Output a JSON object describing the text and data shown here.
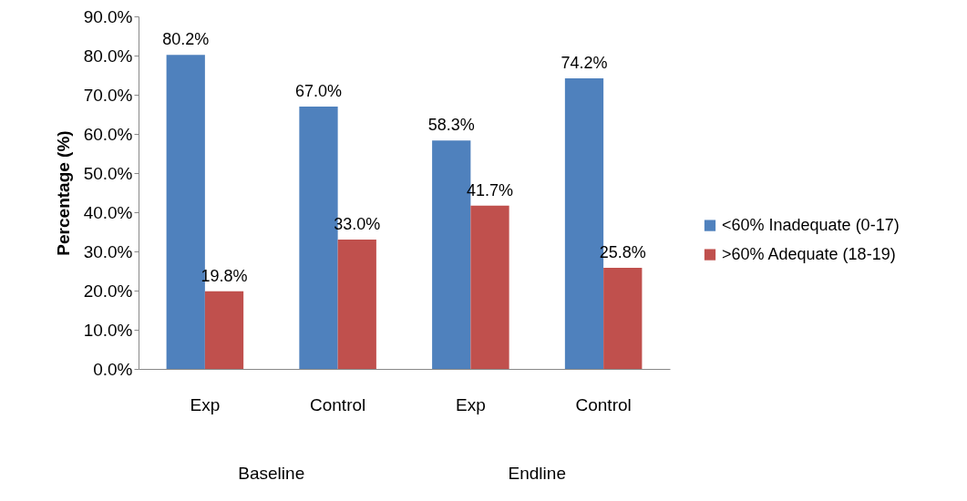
{
  "chart_data": {
    "type": "bar",
    "ylabel": "Percentage (%)",
    "categories": [
      "Exp",
      "Control",
      "Exp",
      "Control"
    ],
    "series": [
      {
        "name": "<60% Inadequate (0-17)",
        "color": "#4f81bd",
        "values": [
          80.2,
          67.0,
          58.3,
          74.2
        ],
        "value_labels": [
          "80.2%",
          "67.0%",
          "58.3%",
          "74.2%"
        ]
      },
      {
        "name": ">60% Adequate (18-19)",
        "color": "#c0504d",
        "values": [
          19.8,
          33.0,
          41.7,
          25.8
        ],
        "value_labels": [
          "19.8%",
          "33.0%",
          "41.7%",
          "25.8%"
        ]
      }
    ],
    "ylim": [
      0,
      90
    ],
    "yticks": [
      {
        "value": 0,
        "label": "0.0%"
      },
      {
        "value": 10,
        "label": "10.0%"
      },
      {
        "value": 20,
        "label": "20.0%"
      },
      {
        "value": 30,
        "label": "30.0%"
      },
      {
        "value": 40,
        "label": "40.0%"
      },
      {
        "value": 50,
        "label": "50.0%"
      },
      {
        "value": 60,
        "label": "60.0%"
      },
      {
        "value": 70,
        "label": "70.0%"
      },
      {
        "value": 80,
        "label": "80.0%"
      },
      {
        "value": 90,
        "label": "90.0%"
      }
    ],
    "annotations": [
      "Baseline",
      "Endline"
    ],
    "legend": "right"
  }
}
